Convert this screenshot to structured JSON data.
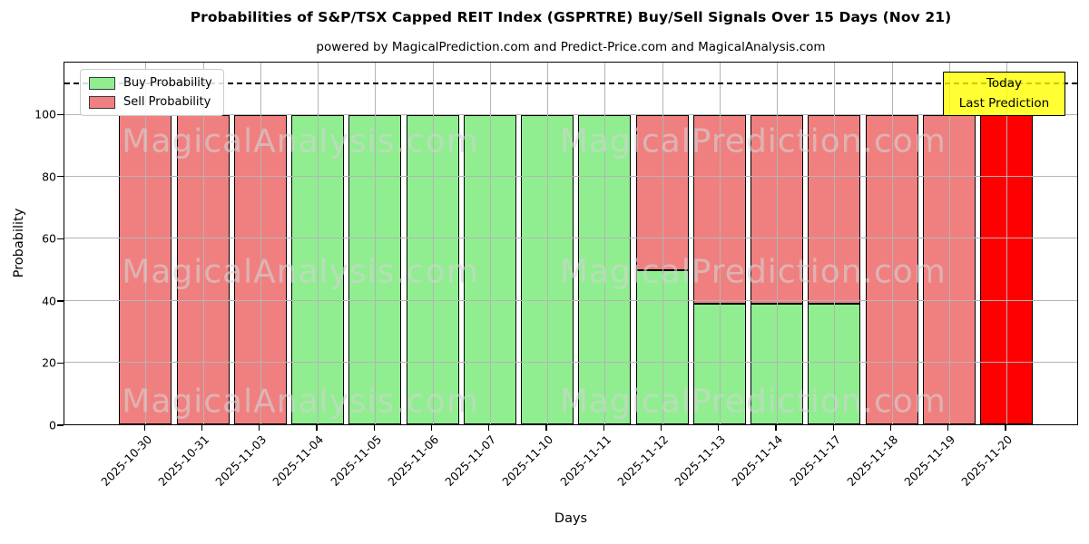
{
  "title": "Probabilities of S&P/TSX Capped REIT Index (GSPRTRE) Buy/Sell Signals Over 15 Days (Nov 21)",
  "subtitle": "powered by MagicalPrediction.com and Predict-Price.com and MagicalAnalysis.com",
  "axes": {
    "xlabel": "Days",
    "ylabel": "Probability"
  },
  "legend": {
    "buy_label": "Buy Probability",
    "sell_label": "Sell Probability"
  },
  "annotation": {
    "line1": "Today",
    "line2": "Last Prediction"
  },
  "watermarks": [
    "MagicalAnalysis.com",
    "MagicalPrediction.com"
  ],
  "colors": {
    "buy": "#90ee90",
    "sell": "#f08080",
    "today_bar": "#ff0000",
    "bar_edge": "#000000",
    "annotation_bg": "rgba(255,255,0,0.8)",
    "grid": "#b4b4b4",
    "watermark": "rgba(211,211,211,0.6)"
  },
  "chart_data": {
    "type": "bar",
    "stacked": true,
    "title": "Probabilities of S&P/TSX Capped REIT Index (GSPRTRE) Buy/Sell Signals Over 15 Days (Nov 21)",
    "xlabel": "Days",
    "ylabel": "Probability",
    "grid": true,
    "legend_position": "upper left",
    "categories": [
      "2025-10-30",
      "2025-10-31",
      "2025-11-03",
      "2025-11-04",
      "2025-11-05",
      "2025-11-06",
      "2025-11-07",
      "2025-11-10",
      "2025-11-11",
      "2025-11-12",
      "2025-11-13",
      "2025-11-14",
      "2025-11-17",
      "2025-11-18",
      "2025-11-19",
      "2025-11-20"
    ],
    "series": [
      {
        "name": "Buy Probability",
        "color": "#90ee90",
        "values": [
          0,
          0,
          0,
          100,
          100,
          100,
          100,
          100,
          100,
          50,
          39,
          39,
          39,
          0,
          0,
          0
        ]
      },
      {
        "name": "Sell Probability",
        "color": "#f08080",
        "values": [
          100,
          100,
          100,
          0,
          0,
          0,
          0,
          0,
          0,
          50,
          61,
          61,
          61,
          100,
          100,
          100
        ]
      }
    ],
    "today_index": 15,
    "yticks": [
      0,
      20,
      40,
      60,
      80,
      100
    ],
    "ylim": [
      0,
      117
    ],
    "dashed_line_y": 110,
    "xtick_rotation": 45
  }
}
